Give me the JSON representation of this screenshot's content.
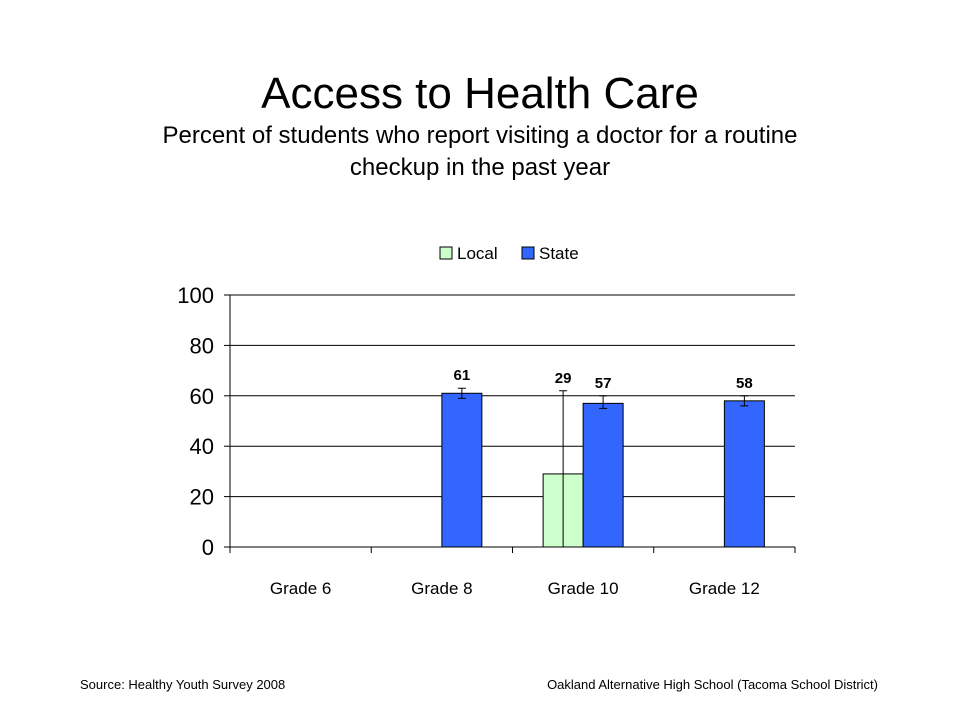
{
  "slide": {
    "title": "Access to Health Care",
    "subtitle_line1": "Percent of students who report visiting a doctor for a routine",
    "subtitle_line2": "checkup in the past year",
    "source": "Source: Healthy Youth Survey 2008",
    "school": "Oakland Alternative High School (Tacoma School District)"
  },
  "chart_data": {
    "type": "bar",
    "categories": [
      "Grade 6",
      "Grade 8",
      "Grade 10",
      "Grade 12"
    ],
    "series": [
      {
        "name": "Local",
        "color": "#ccffcc",
        "values": [
          null,
          null,
          29,
          null
        ],
        "error_high": [
          null,
          null,
          62,
          null
        ],
        "error_low": [
          null,
          null,
          0,
          null
        ]
      },
      {
        "name": "State",
        "color": "#3366ff",
        "values": [
          null,
          61,
          57,
          58
        ],
        "error_high": [
          null,
          63,
          60,
          60
        ],
        "error_low": [
          null,
          59,
          55,
          56
        ]
      }
    ],
    "data_labels": [
      [
        null,
        null,
        "29",
        null
      ],
      [
        null,
        "61",
        "57",
        "58"
      ]
    ],
    "ylim": [
      0,
      100
    ],
    "yticks": [
      0,
      20,
      40,
      60,
      80,
      100
    ],
    "xlabel": "",
    "ylabel": "",
    "grid": true,
    "legend": "top"
  }
}
